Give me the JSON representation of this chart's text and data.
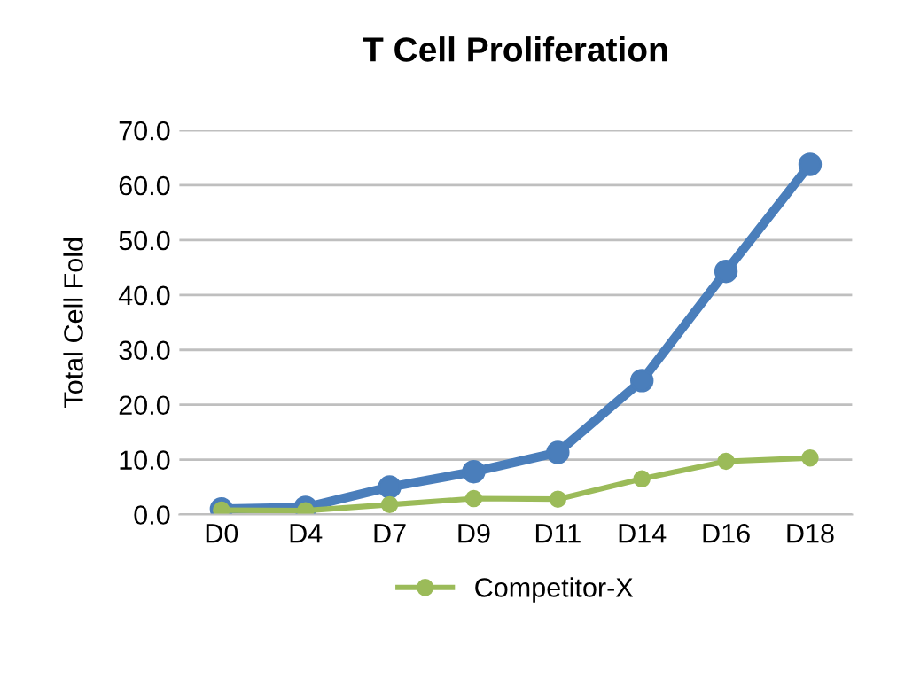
{
  "chart_data": {
    "type": "line",
    "title": "T Cell Proliferation",
    "ylabel": "Total Cell Fold",
    "categories": [
      "D0",
      "D4",
      "D7",
      "D9",
      "D11",
      "D14",
      "D16",
      "D18"
    ],
    "series": [
      {
        "color": "#4a7ebb",
        "values": [
          1.0,
          1.3,
          5.0,
          7.8,
          11.3,
          24.4,
          44.3,
          63.8
        ]
      },
      {
        "name": "Competitor-X",
        "color": "#9bbb59",
        "values": [
          0.8,
          0.7,
          1.8,
          2.9,
          2.8,
          6.5,
          9.7,
          10.3
        ]
      }
    ],
    "ylim": [
      0,
      70
    ],
    "yticks": [
      {
        "value": 0,
        "label": "0.0"
      },
      {
        "value": 10,
        "label": "10.0"
      },
      {
        "value": 20,
        "label": "20.0"
      },
      {
        "value": 30,
        "label": "30.0"
      },
      {
        "value": 40,
        "label": "40.0"
      },
      {
        "value": 50,
        "label": "50.0"
      },
      {
        "value": 60,
        "label": "60.0"
      },
      {
        "value": 70,
        "label": "70.0"
      }
    ],
    "grid": "y",
    "legend": "bottom",
    "marker": "circle",
    "line_style": "solid"
  }
}
